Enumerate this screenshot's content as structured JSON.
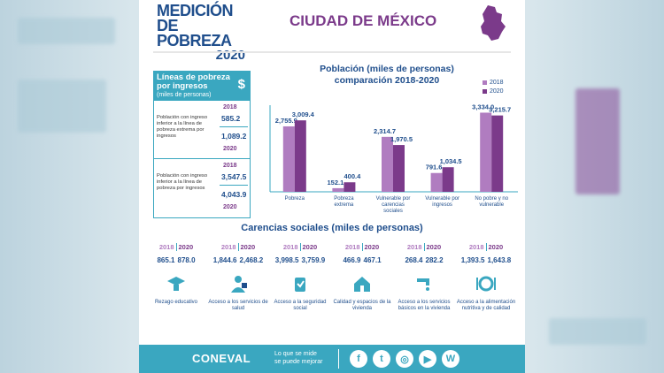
{
  "header": {
    "logo_line1": "MEDICIÓN",
    "logo_line2": "DE POBREZA",
    "logo_year": "2020",
    "city": "CIUDAD DE MÉXICO"
  },
  "lineas": {
    "title": "Líneas de pobreza por ingresos",
    "subtitle": "(miles de personas)",
    "icon": "dollar-icon",
    "rows": [
      {
        "desc": "Población con ingreso inferior a la línea de pobreza extrema por ingresos",
        "year_a": "2018",
        "value_a": "585.2",
        "value_b": "1,089.2",
        "year_b": "2020"
      },
      {
        "desc": "Población con ingreso inferior a la línea de pobreza por ingresos",
        "year_a": "2018",
        "value_a": "3,547.5",
        "value_b": "4,043.9",
        "year_b": "2020"
      }
    ]
  },
  "chart_data": {
    "type": "bar",
    "title": "Población (miles de personas)",
    "subtitle": "comparación 2018-2020",
    "categories": [
      "Pobreza",
      "Pobreza extrema",
      "Vulnerable por carencias sociales",
      "Vulnerable por ingresos",
      "No pobre y no vulnerable"
    ],
    "series": [
      {
        "name": "2018",
        "values": [
          2755.9,
          152.1,
          2314.7,
          791.6,
          3334.0
        ],
        "labels": [
          "2,755.9",
          "152.1",
          "2,314.7",
          "791.6",
          "3,334.0"
        ],
        "color": "#b07cc0"
      },
      {
        "name": "2020",
        "values": [
          3009.4,
          400.4,
          1970.5,
          1034.5,
          3215.7
        ],
        "labels": [
          "3,009.4",
          "400.4",
          "1,970.5",
          "1,034.5",
          "3,215.7"
        ],
        "color": "#7b3a8a"
      }
    ],
    "ylim": [
      0,
      3500
    ],
    "legend": "top-right",
    "grid": false
  },
  "carencias": {
    "title": "Carencias sociales (miles de personas)",
    "items": [
      {
        "y18": "2018",
        "y20": "2020",
        "v18": "865.1",
        "v20": "878.0",
        "label": "Rezago educativo",
        "icon": "graduation-cap-icon"
      },
      {
        "y18": "2018",
        "y20": "2020",
        "v18": "1,844.6",
        "v20": "2,468.2",
        "label": "Acceso a los servicios de salud",
        "icon": "doctor-icon"
      },
      {
        "y18": "2018",
        "y20": "2020",
        "v18": "3,998.5",
        "v20": "3,759.9",
        "label": "Acceso a la seguridad social",
        "icon": "social-security-icon"
      },
      {
        "y18": "2018",
        "y20": "2020",
        "v18": "466.9",
        "v20": "467.1",
        "label": "Calidad y espacios de la vivienda",
        "icon": "house-icon"
      },
      {
        "y18": "2018",
        "y20": "2020",
        "v18": "268.4",
        "v20": "282.2",
        "label": "Acceso a los servicios básicos en la vivienda",
        "icon": "faucet-icon"
      },
      {
        "y18": "2018",
        "y20": "2020",
        "v18": "1,393.5",
        "v20": "1,643.8",
        "label": "Acceso a la alimentación nutritiva y de calidad",
        "icon": "plate-icon"
      }
    ]
  },
  "footer": {
    "brand": "CONEVAL",
    "slogan_line1": "Lo que se mide",
    "slogan_line2": "se puede mejorar",
    "social": [
      {
        "icon": "facebook-icon",
        "glyph": "f"
      },
      {
        "icon": "twitter-icon",
        "glyph": "t"
      },
      {
        "icon": "instagram-icon",
        "glyph": "◎"
      },
      {
        "icon": "youtube-icon",
        "glyph": "▶"
      },
      {
        "icon": "wordpress-icon",
        "glyph": "W"
      }
    ]
  }
}
